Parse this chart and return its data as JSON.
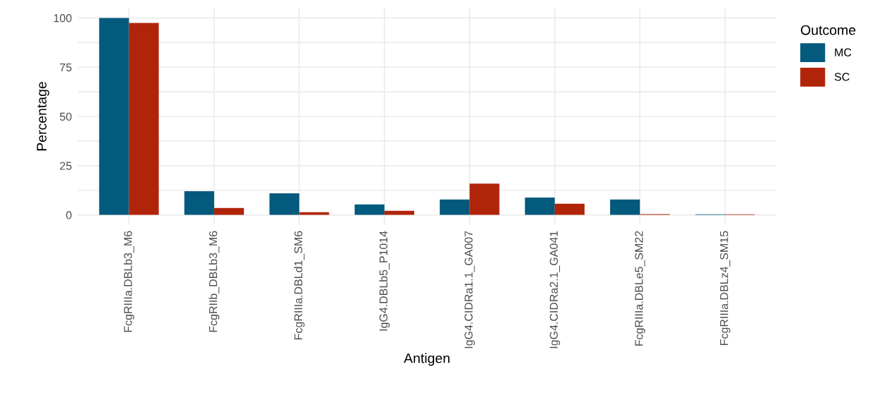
{
  "chart_data": {
    "type": "bar",
    "xlabel": "Antigen",
    "ylabel": "Percentage",
    "legend_title": "Outcome",
    "legend": "right",
    "categories": [
      "FcgRIIIa.DBLb3_M6",
      "FcgRIIb_DBLb3_M6",
      "FcgRIIIa.DBLd1_SM6",
      "IgG4.DBLb5_P1014",
      "IgG4.CIDRa1.1_GA007",
      "IgG4.CIDRa2.1_GA041",
      "FcgRIIIa.DBLe5_SM22",
      "FcgRIIIa.DBLz4_SM15"
    ],
    "series": [
      {
        "name": "MC",
        "color": "#035a7c",
        "values": [
          100,
          12,
          11,
          5.3,
          7.8,
          8.8,
          7.8,
          0.3
        ]
      },
      {
        "name": "SC",
        "color": "#b0240a",
        "values": [
          97.5,
          3.5,
          1.4,
          2.1,
          15.9,
          5.7,
          0.4,
          0.3
        ]
      }
    ],
    "ylim": [
      -5,
      105
    ],
    "yticks": [
      0,
      {
        "value": 12.5,
        "label": null
      },
      25,
      {
        "value": 37.5,
        "label": null
      },
      50,
      {
        "value": 62.5,
        "label": null
      },
      75,
      {
        "value": 87.5,
        "label": null
      },
      100
    ],
    "grid": true
  }
}
